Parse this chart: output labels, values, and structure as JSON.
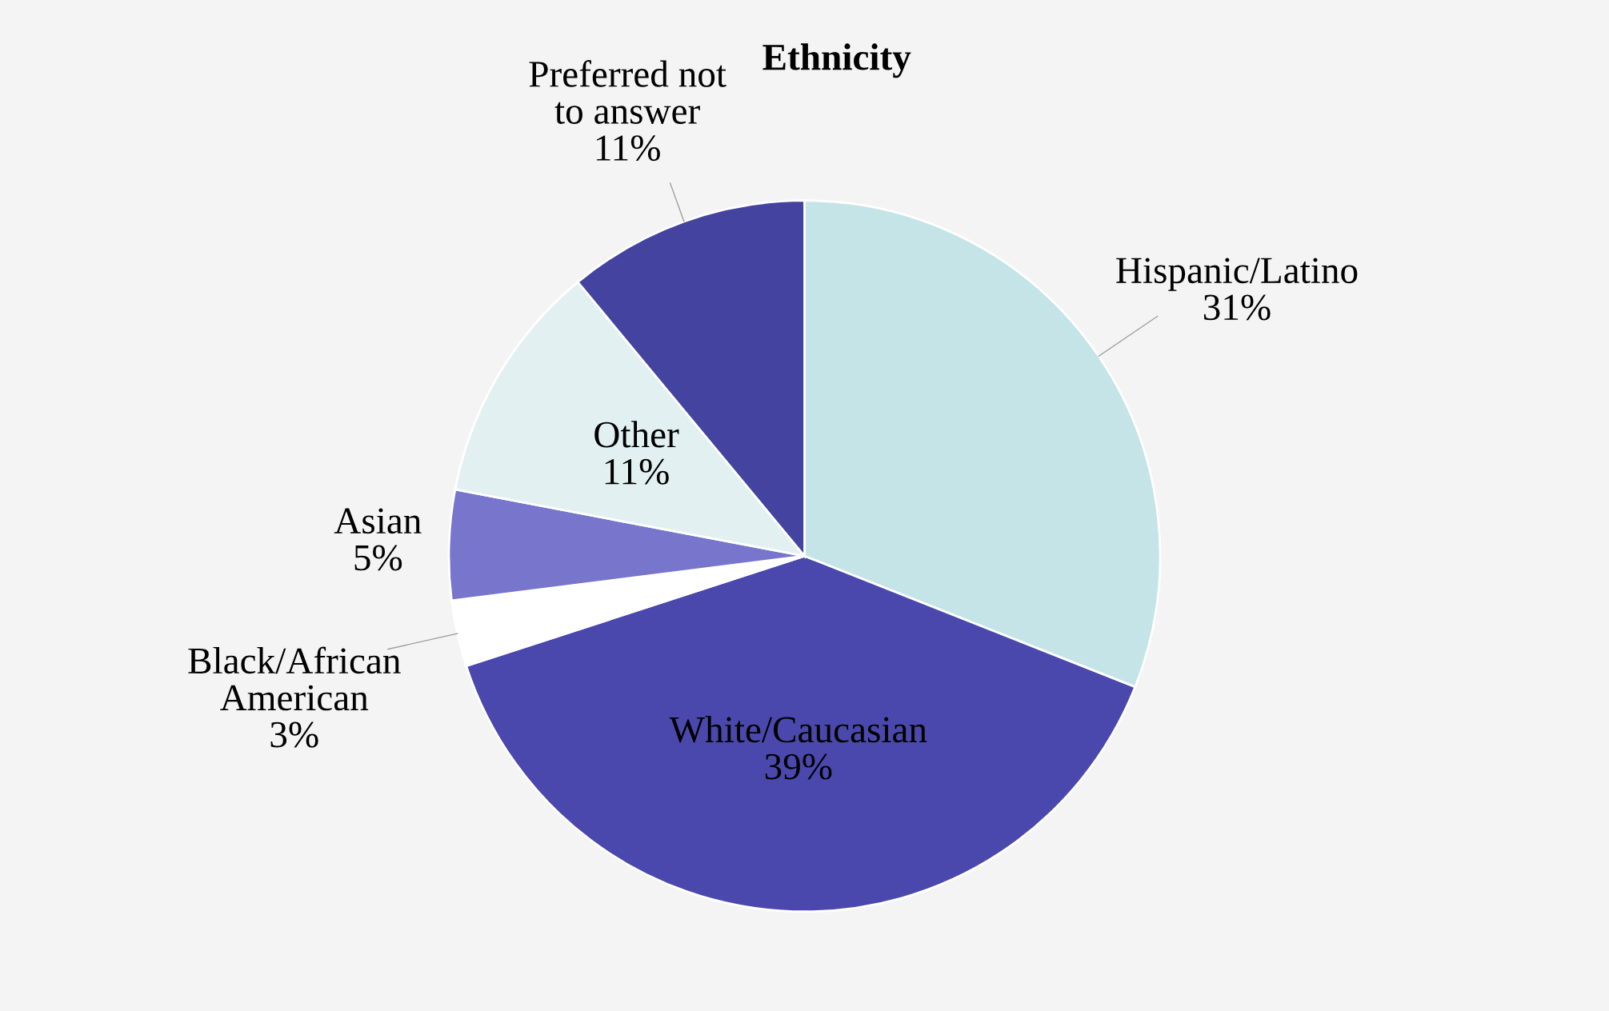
{
  "chart_data": {
    "type": "pie",
    "title": "Ethnicity",
    "categories": [
      "Hispanic/Latino",
      "White/Caucasian",
      "Black/African American",
      "Asian",
      "Other",
      "Preferred not to answer"
    ],
    "values": [
      31,
      39,
      3,
      5,
      11,
      11
    ],
    "colors": [
      "#c4e4e8",
      "#4a48ad",
      "#ffffff",
      "#7775cc",
      "#e2f0f2",
      "#4443a0"
    ],
    "value_labels": [
      "31%",
      "39%",
      "3%",
      "5%",
      "11%",
      "11%"
    ],
    "legend": false
  }
}
